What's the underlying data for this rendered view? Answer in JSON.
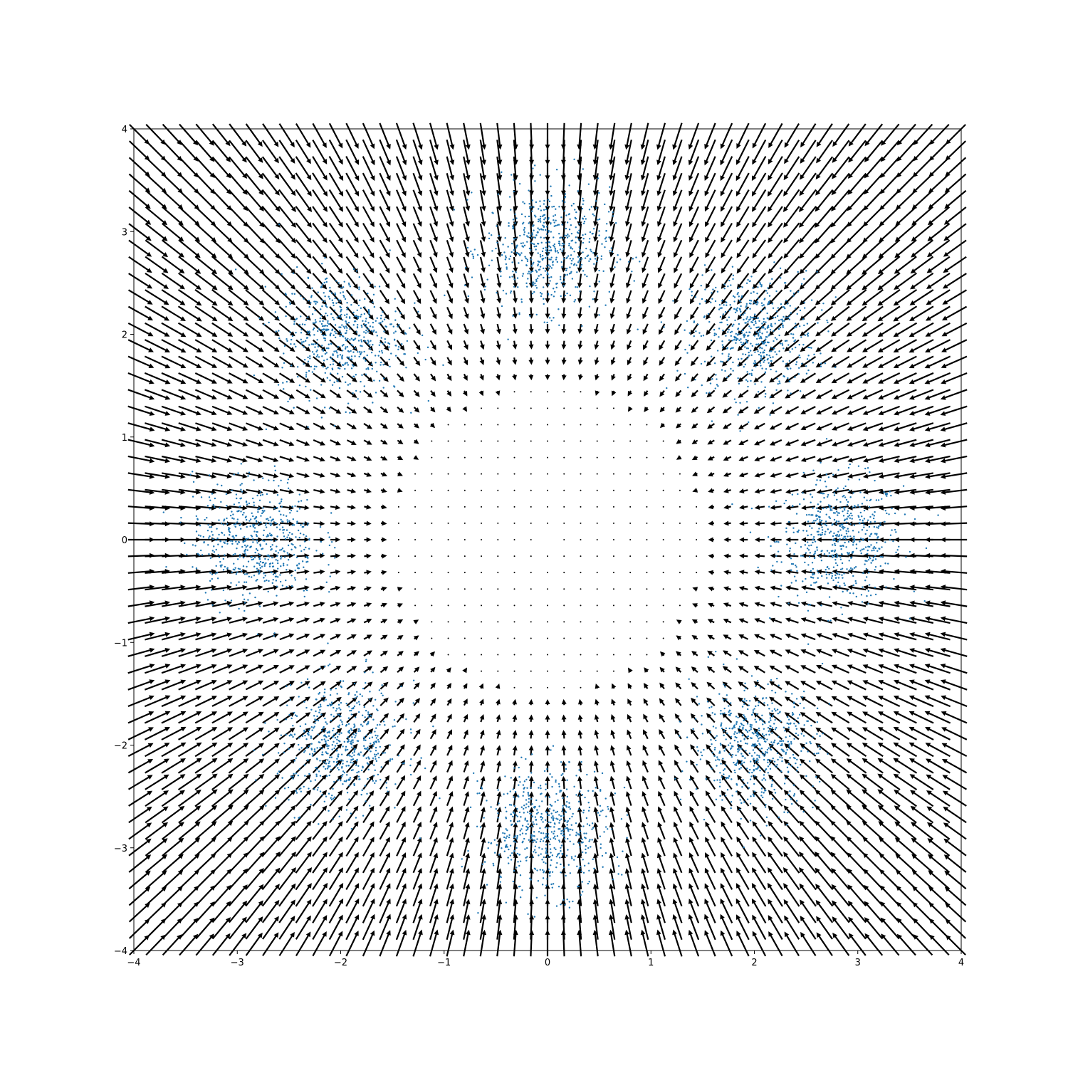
{
  "chart_data": {
    "type": "scatter",
    "title": "",
    "xlabel": "",
    "ylabel": "",
    "xlim": [
      -4,
      4
    ],
    "ylim": [
      -4,
      4
    ],
    "grid": false,
    "x_ticks": [
      -4,
      -3,
      -2,
      -1,
      0,
      1,
      2,
      3,
      4
    ],
    "y_ticks": [
      -4,
      -3,
      -2,
      -1,
      0,
      1,
      2,
      3,
      4
    ],
    "x_tick_labels": [
      "−4",
      "−3",
      "−2",
      "−1",
      "0",
      "1",
      "2",
      "3",
      "4"
    ],
    "y_tick_labels": [
      "−4",
      "−3",
      "−2",
      "−1",
      "0",
      "1",
      "2",
      "3",
      "4"
    ],
    "overlays": [
      "quiver",
      "scatter"
    ],
    "scatter_color": "#1f77b4",
    "arrow_color": "#000000",
    "scatter": {
      "distribution": "mixture of 8 gaussian clusters",
      "points_per_cluster": 550,
      "cluster_std": 0.3,
      "cluster_centers": [
        [
          2.83,
          0.0
        ],
        [
          2.0,
          2.0
        ],
        [
          0.0,
          2.83
        ],
        [
          -2.0,
          2.0
        ],
        [
          -2.83,
          0.0
        ],
        [
          -2.0,
          -2.0
        ],
        [
          0.0,
          -2.83
        ],
        [
          2.0,
          -2.0
        ]
      ]
    },
    "quiver": {
      "x_range": [
        -4,
        4
      ],
      "y_range": [
        -4,
        4
      ],
      "grid_count": 51,
      "field": "radial outward, magnitude grows with distance from origin, near zero inside radius ~2"
    }
  }
}
